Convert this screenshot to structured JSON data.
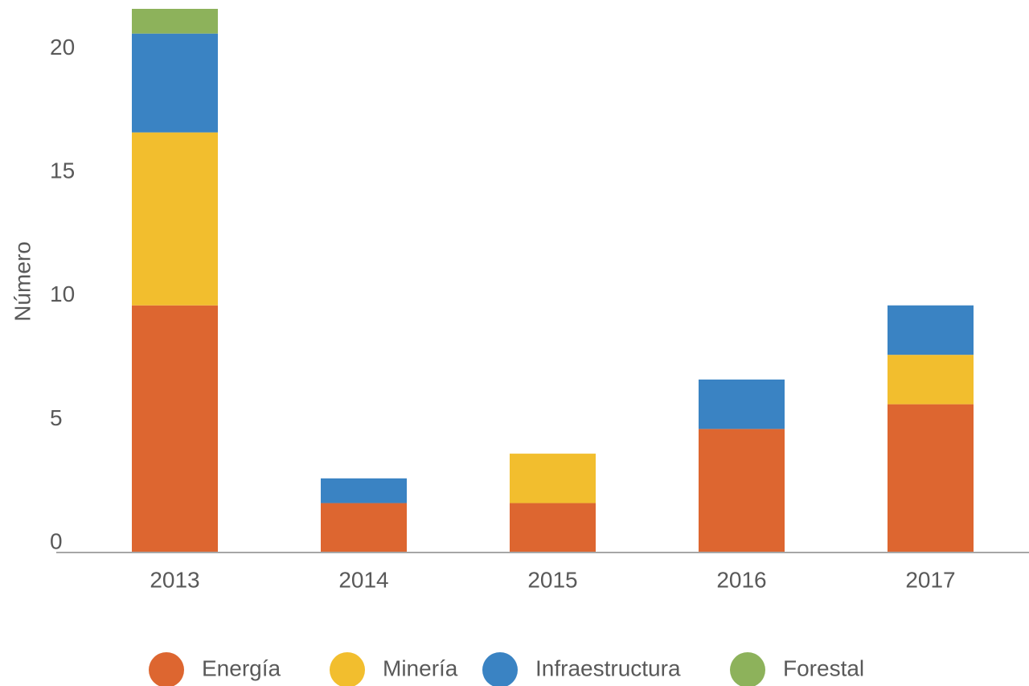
{
  "chart_data": {
    "type": "stacked_bar",
    "y_label": "Número",
    "categories": [
      "2013",
      "2014",
      "2015",
      "2016",
      "2017"
    ],
    "series": [
      {
        "name": "Energía",
        "color": "#dd6630",
        "values": [
          10,
          2,
          2,
          5,
          6
        ]
      },
      {
        "name": "Minería",
        "color": "#f2be2e",
        "values": [
          7,
          0,
          2,
          0,
          2
        ]
      },
      {
        "name": "Infraestructura",
        "color": "#3a83c3",
        "values": [
          4,
          1,
          0,
          2,
          2
        ]
      },
      {
        "name": "Forestal",
        "color": "#8db25b",
        "values": [
          1,
          0,
          0,
          0,
          0
        ]
      }
    ],
    "ylim": [
      0,
      22
    ],
    "yticks": [
      0,
      5,
      10,
      15,
      20
    ],
    "grid": false,
    "legend": "bottom"
  }
}
